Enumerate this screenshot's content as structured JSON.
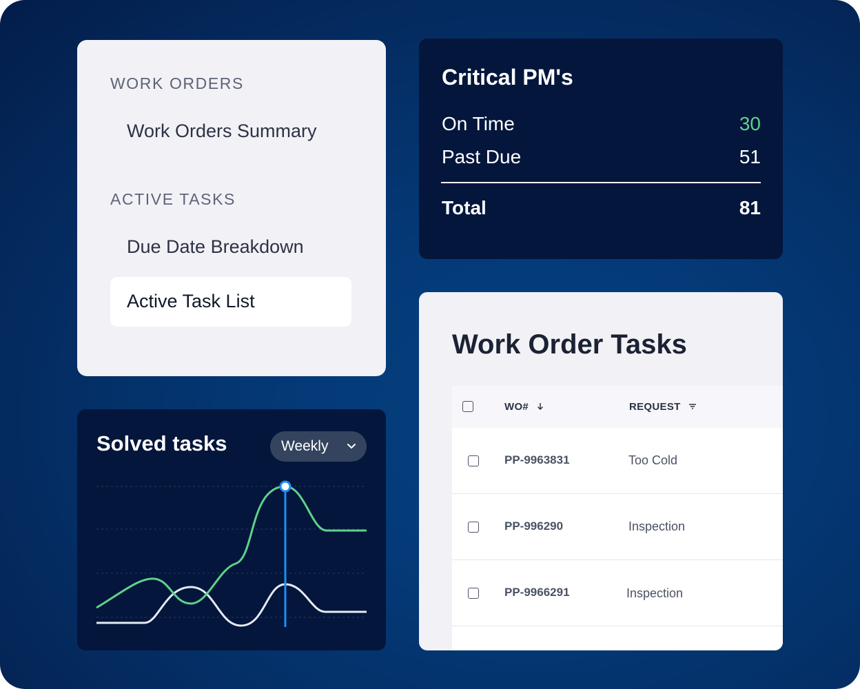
{
  "nav": {
    "section1": "WORK ORDERS",
    "link1": "Work Orders Summary",
    "section2": "ACTIVE TASKS",
    "link2": "Due Date Breakdown",
    "active_link": "Active Task List"
  },
  "pm": {
    "title": "Critical PM's",
    "rows": [
      {
        "label": "On Time",
        "value": "30"
      },
      {
        "label": "Past Due",
        "value": "51"
      }
    ],
    "total_label": "Total",
    "total_value": "81",
    "colors": {
      "on_time": "#5fd18a"
    }
  },
  "solved": {
    "title": "Solved tasks",
    "period": "Weekly",
    "icons": {
      "period_dropdown": "chevron-down-icon"
    },
    "colors": {
      "primary_series": "#5fd18a",
      "secondary_series": "#e6eaf2",
      "highlight": "#1f8ef5"
    }
  },
  "tasks": {
    "title": "Work Order Tasks",
    "columns": {
      "wo": "WO#",
      "request": "REQUEST"
    },
    "icons": {
      "sort": "arrow-down-icon",
      "filter": "filter-icon"
    },
    "rows": [
      {
        "wo": "PP-9963831",
        "request": "Too Cold"
      },
      {
        "wo": "PP-996290",
        "request": "Inspection"
      },
      {
        "wo": "PP-9966291",
        "request": "Inspection"
      }
    ]
  }
}
